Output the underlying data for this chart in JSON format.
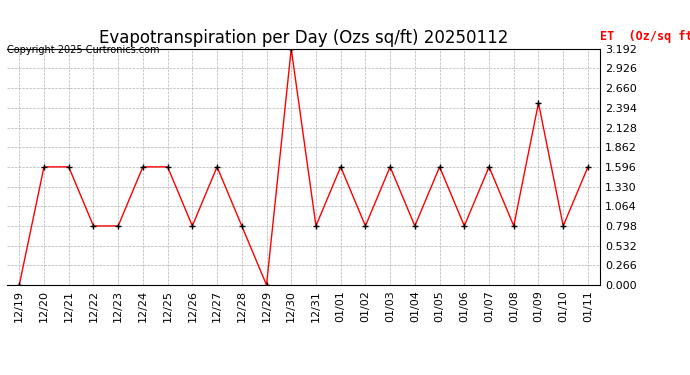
{
  "title": "Evapotranspiration per Day (Ozs sq/ft) 20250112",
  "copyright": "Copyright 2025 Curtronics.com",
  "legend_label": "ET  (Oz/sq ft)",
  "dates": [
    "12/19",
    "12/20",
    "12/21",
    "12/22",
    "12/23",
    "12/24",
    "12/25",
    "12/26",
    "12/27",
    "12/28",
    "12/29",
    "12/30",
    "12/31",
    "01/01",
    "01/02",
    "01/03",
    "01/04",
    "01/05",
    "01/06",
    "01/07",
    "01/08",
    "01/09",
    "01/10",
    "01/11"
  ],
  "values": [
    0.0,
    1.596,
    1.596,
    0.798,
    0.798,
    1.596,
    1.596,
    0.798,
    1.596,
    0.798,
    0.0,
    3.192,
    0.798,
    1.596,
    0.798,
    1.596,
    0.798,
    1.596,
    0.798,
    1.596,
    0.798,
    2.46,
    0.798,
    1.596
  ],
  "ylim": [
    0.0,
    3.192
  ],
  "yticks": [
    0.0,
    0.266,
    0.532,
    0.798,
    1.064,
    1.33,
    1.596,
    1.862,
    2.128,
    2.394,
    2.66,
    2.926,
    3.192
  ],
  "line_color": "red",
  "marker_color": "black",
  "grid_color": "#aaaaaa",
  "bg_color": "white",
  "title_fontsize": 12,
  "tick_fontsize": 8,
  "legend_color": "red"
}
